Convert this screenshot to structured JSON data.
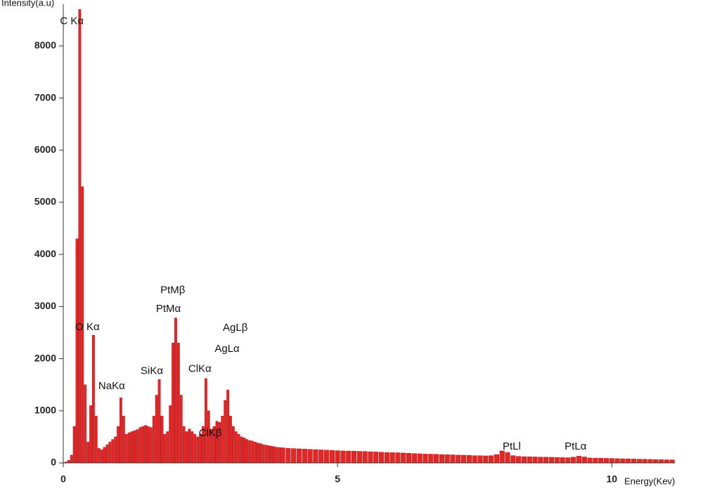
{
  "chart_data": {
    "type": "bar",
    "y_label": "Intensity(a.u)",
    "x_label": "Energy(Kev)",
    "color": "#e02828",
    "xlim": [
      0,
      11.15
    ],
    "ylim": [
      0,
      8800
    ],
    "xticks": [
      0,
      5,
      10
    ],
    "yticks": [
      0,
      1000,
      2000,
      3000,
      4000,
      5000,
      6000,
      7000,
      8000
    ],
    "x": [
      0.0,
      0.05,
      0.1,
      0.15,
      0.2,
      0.25,
      0.3,
      0.35,
      0.4,
      0.45,
      0.5,
      0.55,
      0.6,
      0.65,
      0.7,
      0.75,
      0.8,
      0.85,
      0.9,
      0.95,
      1.0,
      1.05,
      1.1,
      1.15,
      1.2,
      1.25,
      1.3,
      1.35,
      1.4,
      1.45,
      1.5,
      1.55,
      1.6,
      1.65,
      1.7,
      1.75,
      1.8,
      1.85,
      1.9,
      1.95,
      2.0,
      2.05,
      2.1,
      2.15,
      2.2,
      2.25,
      2.3,
      2.35,
      2.4,
      2.45,
      2.5,
      2.55,
      2.6,
      2.65,
      2.7,
      2.75,
      2.8,
      2.85,
      2.9,
      2.95,
      3.0,
      3.05,
      3.1,
      3.15,
      3.2,
      3.25,
      3.3,
      3.35,
      3.4,
      3.45,
      3.5,
      3.55,
      3.6,
      3.65,
      3.7,
      3.75,
      3.8,
      3.85,
      3.9,
      3.95,
      4.0,
      4.1,
      4.2,
      4.3,
      4.4,
      4.5,
      4.6,
      4.7,
      4.8,
      4.9,
      5.0,
      5.1,
      5.2,
      5.3,
      5.4,
      5.5,
      5.6,
      5.7,
      5.8,
      5.9,
      6.0,
      6.1,
      6.2,
      6.3,
      6.4,
      6.5,
      6.6,
      6.7,
      6.8,
      6.9,
      7.0,
      7.1,
      7.2,
      7.3,
      7.4,
      7.5,
      7.6,
      7.7,
      7.8,
      7.9,
      8.0,
      8.1,
      8.2,
      8.3,
      8.4,
      8.5,
      8.6,
      8.7,
      8.8,
      8.9,
      9.0,
      9.1,
      9.2,
      9.3,
      9.4,
      9.5,
      9.6,
      9.7,
      9.8,
      9.9,
      10.0,
      10.1,
      10.2,
      10.3,
      10.4,
      10.5,
      10.6,
      10.7,
      10.8,
      10.9,
      11.0,
      11.1
    ],
    "values": [
      0,
      20,
      50,
      150,
      700,
      4300,
      8700,
      5300,
      1500,
      400,
      1100,
      2450,
      900,
      280,
      250,
      300,
      350,
      400,
      450,
      500,
      700,
      1250,
      900,
      550,
      580,
      600,
      620,
      640,
      680,
      700,
      720,
      700,
      680,
      900,
      1300,
      1600,
      900,
      550,
      600,
      1100,
      2300,
      2780,
      2300,
      1300,
      700,
      600,
      650,
      600,
      550,
      500,
      550,
      700,
      1620,
      1000,
      650,
      700,
      800,
      780,
      900,
      1200,
      1400,
      900,
      700,
      600,
      550,
      500,
      480,
      450,
      430,
      420,
      400,
      380,
      370,
      350,
      340,
      330,
      320,
      310,
      300,
      295,
      290,
      280,
      275,
      270,
      265,
      260,
      255,
      250,
      245,
      240,
      235,
      230,
      228,
      225,
      222,
      220,
      215,
      210,
      205,
      200,
      198,
      195,
      190,
      185,
      180,
      175,
      170,
      168,
      165,
      160,
      158,
      155,
      150,
      148,
      145,
      140,
      138,
      135,
      140,
      160,
      230,
      200,
      140,
      125,
      120,
      118,
      115,
      112,
      110,
      108,
      105,
      102,
      100,
      110,
      130,
      115,
      95,
      92,
      90,
      88,
      85,
      82,
      80,
      78,
      75,
      72,
      70,
      68,
      65,
      62,
      60,
      58
    ],
    "annotations": [
      {
        "text": "C Kα",
        "x": -0.06,
        "y": 8470
      },
      {
        "text": "O Kα",
        "x": 0.22,
        "y": 2600
      },
      {
        "text": "NaKα",
        "x": 0.64,
        "y": 1470
      },
      {
        "text": "SiKα",
        "x": 1.41,
        "y": 1760
      },
      {
        "text": "PtMβ",
        "x": 1.77,
        "y": 3310
      },
      {
        "text": "PtMα",
        "x": 1.69,
        "y": 2950
      },
      {
        "text": "ClKα",
        "x": 2.28,
        "y": 1800
      },
      {
        "text": "ClKβ",
        "x": 2.47,
        "y": 565
      },
      {
        "text": "AgLβ",
        "x": 2.91,
        "y": 2590
      },
      {
        "text": "AgLα",
        "x": 2.76,
        "y": 2180
      },
      {
        "text": "PtLl",
        "x": 8.01,
        "y": 310
      },
      {
        "text": "PtLα",
        "x": 9.14,
        "y": 310
      }
    ]
  }
}
